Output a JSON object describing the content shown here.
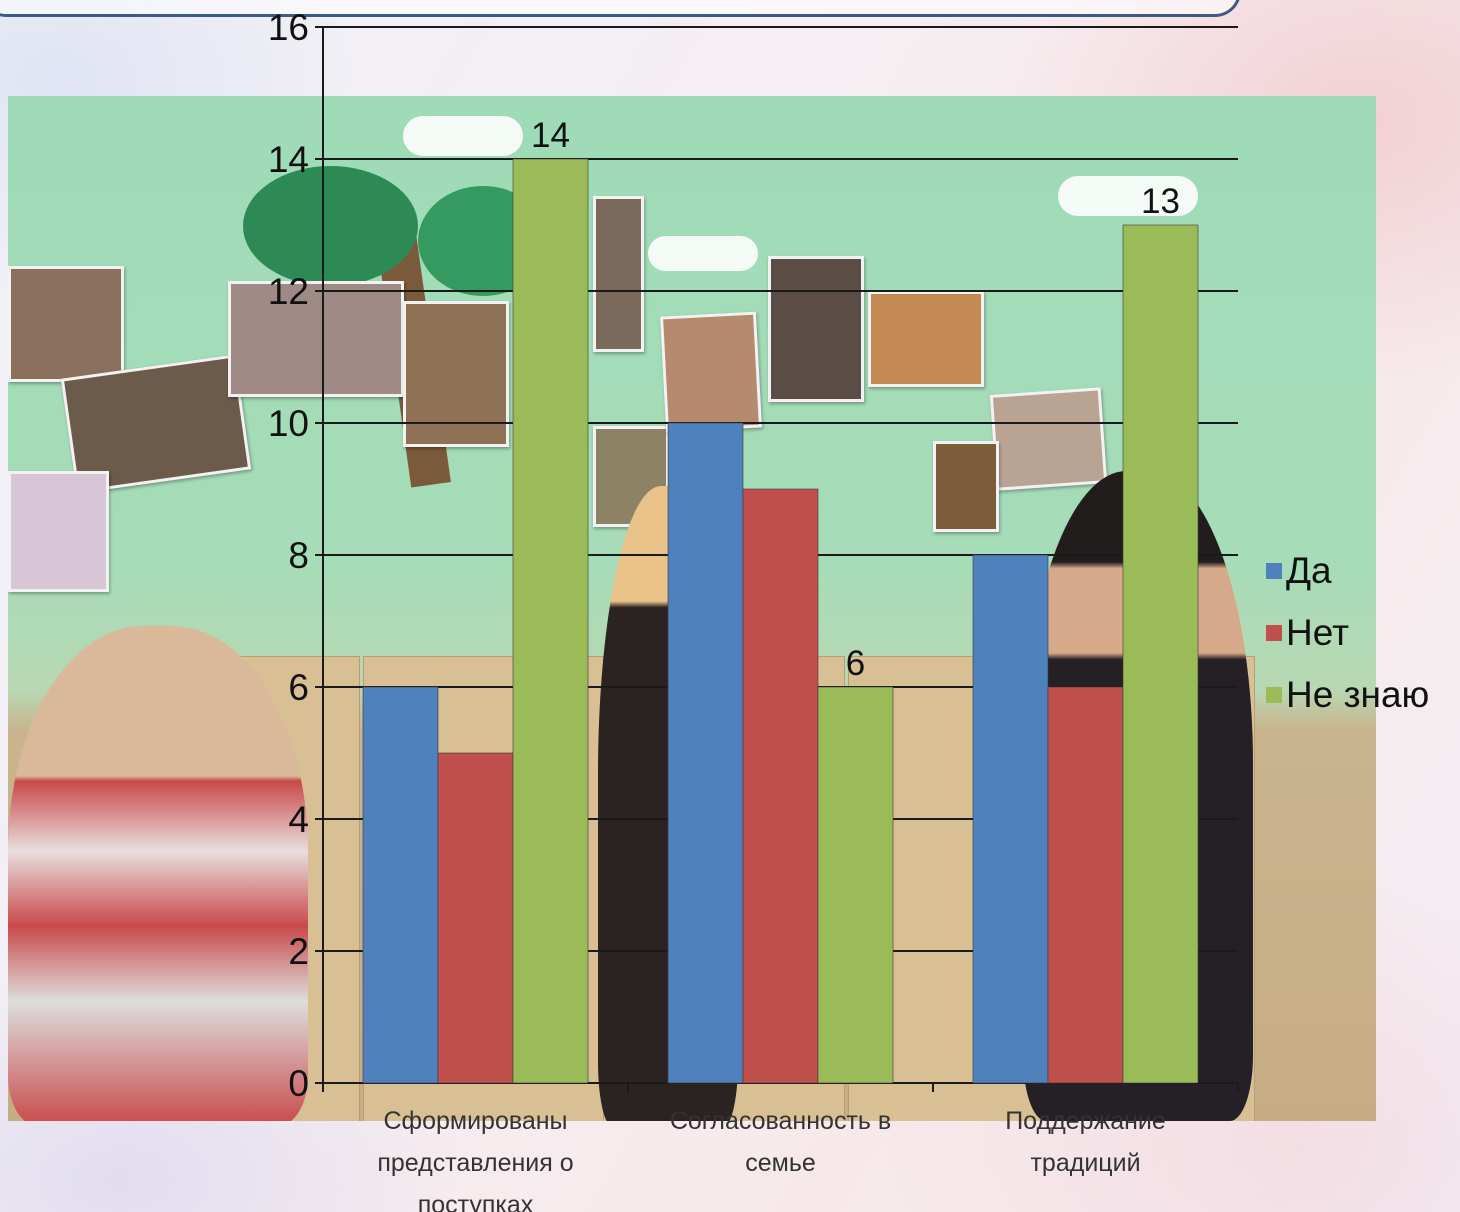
{
  "chart_data": {
    "type": "bar",
    "categories": [
      [
        "Сформированы",
        "представления о",
        "поступках"
      ],
      [
        "Согласованность в",
        "семье"
      ],
      [
        "Поддержание",
        "традиций"
      ]
    ],
    "series": [
      {
        "name": "Да",
        "color": "#4f81bd",
        "values": [
          6,
          10,
          8
        ]
      },
      {
        "name": "Нет",
        "color": "#c0504d",
        "values": [
          5,
          9,
          6
        ]
      },
      {
        "name": "Не знаю",
        "color": "#9bbb59",
        "values": [
          14,
          6,
          13
        ]
      }
    ],
    "data_labels": [
      {
        "series": 2,
        "category": 0,
        "text": "14"
      },
      {
        "series": 2,
        "category": 1,
        "text": "6"
      },
      {
        "series": 2,
        "category": 2,
        "text": "13"
      }
    ],
    "yticks": [
      0,
      2,
      4,
      6,
      8,
      10,
      12,
      14,
      16
    ],
    "ylim": [
      0,
      16
    ],
    "grid": true,
    "legend_position": "right"
  }
}
